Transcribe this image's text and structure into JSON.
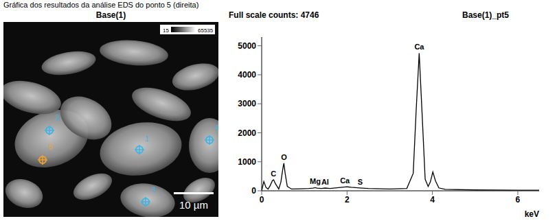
{
  "caption": "Gráfica dos resultados da análise EDS do ponto 5 (direita)",
  "image": {
    "title": "Base(1)",
    "grayscale_min": 15,
    "grayscale_max": 65535,
    "points": [
      "1",
      "2",
      "3",
      "4",
      "5"
    ],
    "selected_point": "5",
    "scale_bar": "10 µm"
  },
  "chart_data": {
    "type": "line",
    "title": "Base(1)_pt5",
    "subtitle": "Full scale counts: 4746",
    "x_label": "keV",
    "x": [
      0,
      0.05,
      0.1,
      0.15,
      0.2,
      0.25,
      0.28,
      0.32,
      0.4,
      0.45,
      0.5,
      0.52,
      0.55,
      0.6,
      0.7,
      0.9,
      1.1,
      1.2,
      1.25,
      1.3,
      1.4,
      1.49,
      1.6,
      1.8,
      2.0,
      2.1,
      2.3,
      2.5,
      3.0,
      3.4,
      3.55,
      3.62,
      3.69,
      3.76,
      3.83,
      3.9,
      3.95,
      4.01,
      4.07,
      4.15,
      4.3,
      5.0,
      6.0,
      6.5
    ],
    "values": [
      0,
      320,
      120,
      60,
      180,
      350,
      380,
      250,
      60,
      300,
      800,
      950,
      600,
      150,
      60,
      70,
      80,
      90,
      110,
      90,
      80,
      95,
      80,
      110,
      140,
      120,
      100,
      80,
      60,
      80,
      600,
      2800,
      4746,
      2600,
      400,
      150,
      300,
      650,
      350,
      100,
      50,
      30,
      20,
      20
    ],
    "color": "#000000",
    "xlim": [
      0,
      6.5
    ],
    "xticks": [
      0,
      2,
      4,
      6
    ],
    "ylim": [
      0,
      5300
    ],
    "yticks": [
      0,
      1000,
      2000,
      3000,
      4000,
      5000
    ],
    "grid": false,
    "annotations": [
      {
        "text": "C",
        "x": 0.277
      },
      {
        "text": "O",
        "x": 0.525
      },
      {
        "text": "Mg",
        "x": 1.254
      },
      {
        "text": "Al",
        "x": 1.487
      },
      {
        "text": "Ca",
        "x": 1.95
      },
      {
        "text": "S",
        "x": 2.307
      },
      {
        "text": "Ca",
        "x": 3.691
      }
    ]
  }
}
